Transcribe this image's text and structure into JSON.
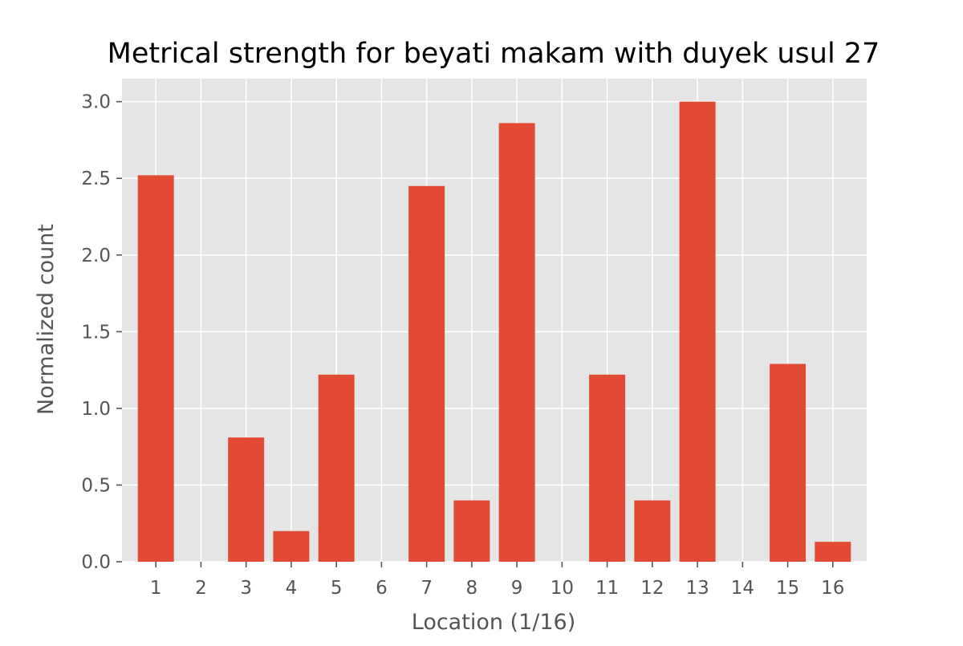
{
  "chart_data": {
    "type": "bar",
    "title": "Metrical strength for beyati makam with duyek usul 27",
    "xlabel": "Location (1/16)",
    "ylabel": "Normalized count",
    "categories": [
      "1",
      "2",
      "3",
      "4",
      "5",
      "6",
      "7",
      "8",
      "9",
      "10",
      "11",
      "12",
      "13",
      "14",
      "15",
      "16"
    ],
    "values": [
      2.52,
      0,
      0.81,
      0.2,
      1.22,
      0,
      2.45,
      0.4,
      2.86,
      0,
      1.22,
      0.4,
      3.0,
      0,
      1.29,
      0.13
    ],
    "yticks": [
      "0.0",
      "0.5",
      "1.0",
      "1.5",
      "2.0",
      "2.5",
      "3.0"
    ],
    "ylim": [
      0,
      3.15
    ],
    "grid": true,
    "style": "ggplot",
    "colors": {
      "bar": "#E24A33",
      "panel": "#E5E5E5",
      "grid": "#FFFFFF",
      "text": "#555555",
      "title": "#000000"
    }
  }
}
